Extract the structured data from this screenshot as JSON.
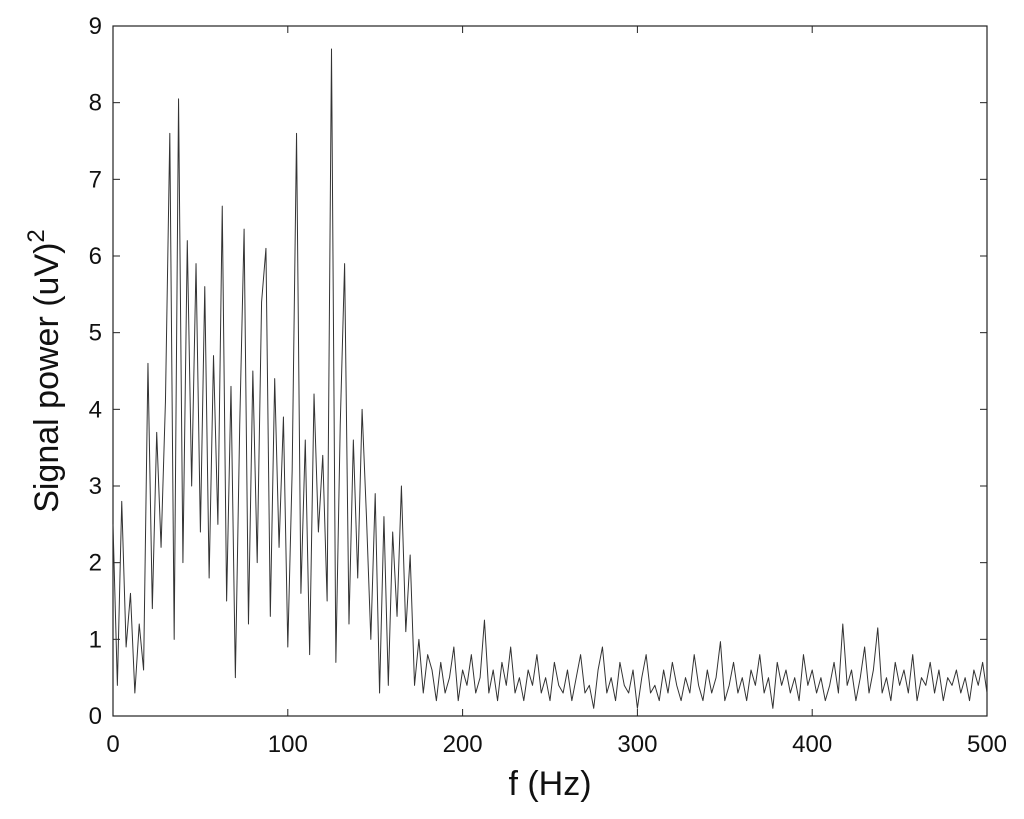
{
  "chart_data": {
    "type": "line",
    "xlabel": "f (Hz)",
    "ylabel": "Signal power (uV)",
    "ylabel_superscript": "2",
    "color": "#333333",
    "xlim": [
      0,
      500
    ],
    "xticks": [
      0,
      100,
      200,
      300,
      400,
      500
    ],
    "ylim": [
      0,
      9
    ],
    "yticks": [
      0,
      1,
      2,
      3,
      4,
      5,
      6,
      7,
      8,
      9
    ],
    "x": [
      0,
      2.5,
      5,
      7.5,
      10,
      12.5,
      15,
      17.5,
      20,
      22.5,
      25,
      27.5,
      30,
      32.5,
      35,
      37.5,
      40,
      42.5,
      45,
      47.5,
      50,
      52.5,
      55,
      57.5,
      60,
      62.5,
      65,
      67.5,
      70,
      72.5,
      75,
      77.5,
      80,
      82.5,
      85,
      87.5,
      90,
      92.5,
      95,
      97.5,
      100,
      102.5,
      105,
      107.5,
      110,
      112.5,
      115,
      117.5,
      120,
      122.5,
      125,
      127.5,
      130,
      132.5,
      135,
      137.5,
      140,
      142.5,
      145,
      147.5,
      150,
      152.5,
      155,
      157.5,
      160,
      162.5,
      165,
      167.5,
      170,
      172.5,
      175,
      177.5,
      180,
      182.5,
      185,
      187.5,
      190,
      192.5,
      195,
      197.5,
      200,
      202.5,
      205,
      207.5,
      210,
      212.5,
      215,
      217.5,
      220,
      222.5,
      225,
      227.5,
      230,
      232.5,
      235,
      237.5,
      240,
      242.5,
      245,
      247.5,
      250,
      252.5,
      255,
      257.5,
      260,
      262.5,
      265,
      267.5,
      270,
      272.5,
      275,
      277.5,
      280,
      282.5,
      285,
      287.5,
      290,
      292.5,
      295,
      297.5,
      300,
      302.5,
      305,
      307.5,
      310,
      312.5,
      315,
      317.5,
      320,
      322.5,
      325,
      327.5,
      330,
      332.5,
      335,
      337.5,
      340,
      342.5,
      345,
      347.5,
      350,
      352.5,
      355,
      357.5,
      360,
      362.5,
      365,
      367.5,
      370,
      372.5,
      375,
      377.5,
      380,
      382.5,
      385,
      387.5,
      390,
      392.5,
      395,
      397.5,
      400,
      402.5,
      405,
      407.5,
      410,
      412.5,
      415,
      417.5,
      420,
      422.5,
      425,
      427.5,
      430,
      432.5,
      435,
      437.5,
      440,
      442.5,
      445,
      447.5,
      450,
      452.5,
      455,
      457.5,
      460,
      462.5,
      465,
      467.5,
      470,
      472.5,
      475,
      477.5,
      480,
      482.5,
      485,
      487.5,
      490,
      492.5,
      495,
      497.5,
      500
    ],
    "values": [
      2.5,
      0.4,
      2.8,
      0.9,
      1.6,
      0.3,
      1.2,
      0.6,
      4.6,
      1.4,
      3.7,
      2.2,
      4.1,
      7.6,
      1.0,
      8.05,
      2.0,
      6.2,
      3.0,
      5.9,
      2.4,
      5.6,
      1.8,
      4.7,
      2.5,
      6.65,
      1.5,
      4.3,
      0.5,
      3.8,
      6.35,
      1.2,
      4.5,
      2.0,
      5.4,
      6.1,
      1.3,
      4.4,
      2.2,
      3.9,
      0.9,
      3.2,
      7.6,
      1.6,
      3.6,
      0.8,
      4.2,
      2.4,
      3.4,
      1.5,
      8.7,
      0.7,
      3.8,
      5.9,
      1.2,
      3.6,
      1.8,
      4.0,
      2.6,
      1.0,
      2.9,
      0.3,
      2.6,
      0.4,
      2.4,
      1.3,
      3.0,
      1.1,
      2.1,
      0.4,
      1.0,
      0.3,
      0.8,
      0.6,
      0.2,
      0.7,
      0.3,
      0.5,
      0.9,
      0.2,
      0.6,
      0.4,
      0.8,
      0.3,
      0.5,
      1.25,
      0.3,
      0.6,
      0.2,
      0.7,
      0.4,
      0.9,
      0.3,
      0.5,
      0.2,
      0.6,
      0.4,
      0.8,
      0.3,
      0.5,
      0.2,
      0.7,
      0.4,
      0.3,
      0.6,
      0.2,
      0.5,
      0.8,
      0.3,
      0.4,
      0.1,
      0.6,
      0.9,
      0.3,
      0.5,
      0.2,
      0.7,
      0.4,
      0.3,
      0.6,
      0.1,
      0.5,
      0.8,
      0.3,
      0.4,
      0.2,
      0.6,
      0.3,
      0.7,
      0.4,
      0.2,
      0.5,
      0.3,
      0.8,
      0.4,
      0.2,
      0.6,
      0.3,
      0.5,
      0.97,
      0.2,
      0.4,
      0.7,
      0.3,
      0.5,
      0.2,
      0.6,
      0.4,
      0.8,
      0.3,
      0.5,
      0.1,
      0.7,
      0.4,
      0.6,
      0.3,
      0.5,
      0.2,
      0.8,
      0.4,
      0.6,
      0.3,
      0.5,
      0.2,
      0.4,
      0.7,
      0.3,
      1.2,
      0.4,
      0.6,
      0.2,
      0.5,
      0.9,
      0.3,
      0.6,
      1.15,
      0.3,
      0.5,
      0.2,
      0.7,
      0.4,
      0.6,
      0.3,
      0.8,
      0.2,
      0.5,
      0.4,
      0.7,
      0.3,
      0.6,
      0.2,
      0.5,
      0.4,
      0.6,
      0.3,
      0.5,
      0.2,
      0.6,
      0.4,
      0.7,
      0.3
    ]
  }
}
